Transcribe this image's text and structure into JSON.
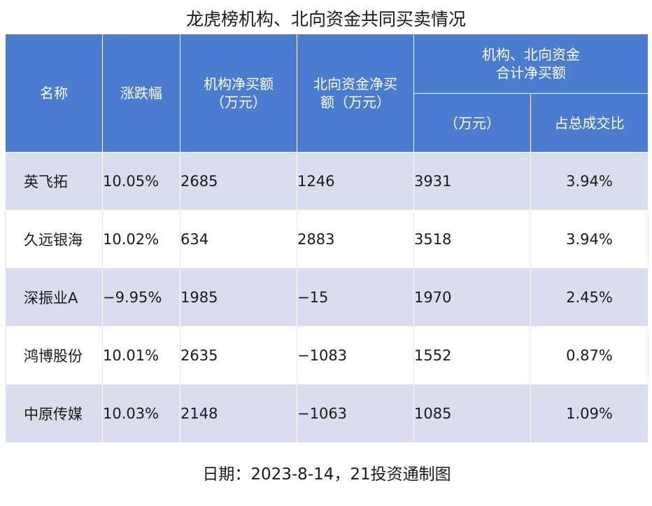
{
  "title": "龙虎榜机构、北向资金共同买卖情况",
  "headers": {
    "name": "名称",
    "change": "涨跌幅",
    "inst_line1": "机构净买额",
    "inst_line2": "（万元）",
    "north_line1": "北向资金净买",
    "north_line2": "额（万元）",
    "combined_line1": "机构、北向资金",
    "combined_line2": "合计净买额",
    "combined_sub_amount": "（万元）",
    "combined_sub_ratio": "占总成交比"
  },
  "rows": [
    {
      "name": "英飞拓",
      "change": "10.05%",
      "inst": "2685",
      "north": "1246",
      "total": "3931",
      "ratio": "3.94%"
    },
    {
      "name": "久远银海",
      "change": "10.02%",
      "inst": "634",
      "north": "2883",
      "total": "3518",
      "ratio": "3.94%"
    },
    {
      "name": "深振业A",
      "change": "−9.95%",
      "inst": "1985",
      "north": "−15",
      "total": "1970",
      "ratio": "2.45%"
    },
    {
      "name": "鸿博股份",
      "change": "10.01%",
      "inst": "2635",
      "north": "−1083",
      "total": "1552",
      "ratio": "0.87%"
    },
    {
      "name": "中原传媒",
      "change": "10.03%",
      "inst": "2148",
      "north": "−1063",
      "total": "1085",
      "ratio": "1.09%"
    }
  ],
  "footer": "日期：2023-8-14，21投资通制图",
  "colors": {
    "header_bg": "#4a7ccf",
    "row_shade": "#d9deef"
  }
}
